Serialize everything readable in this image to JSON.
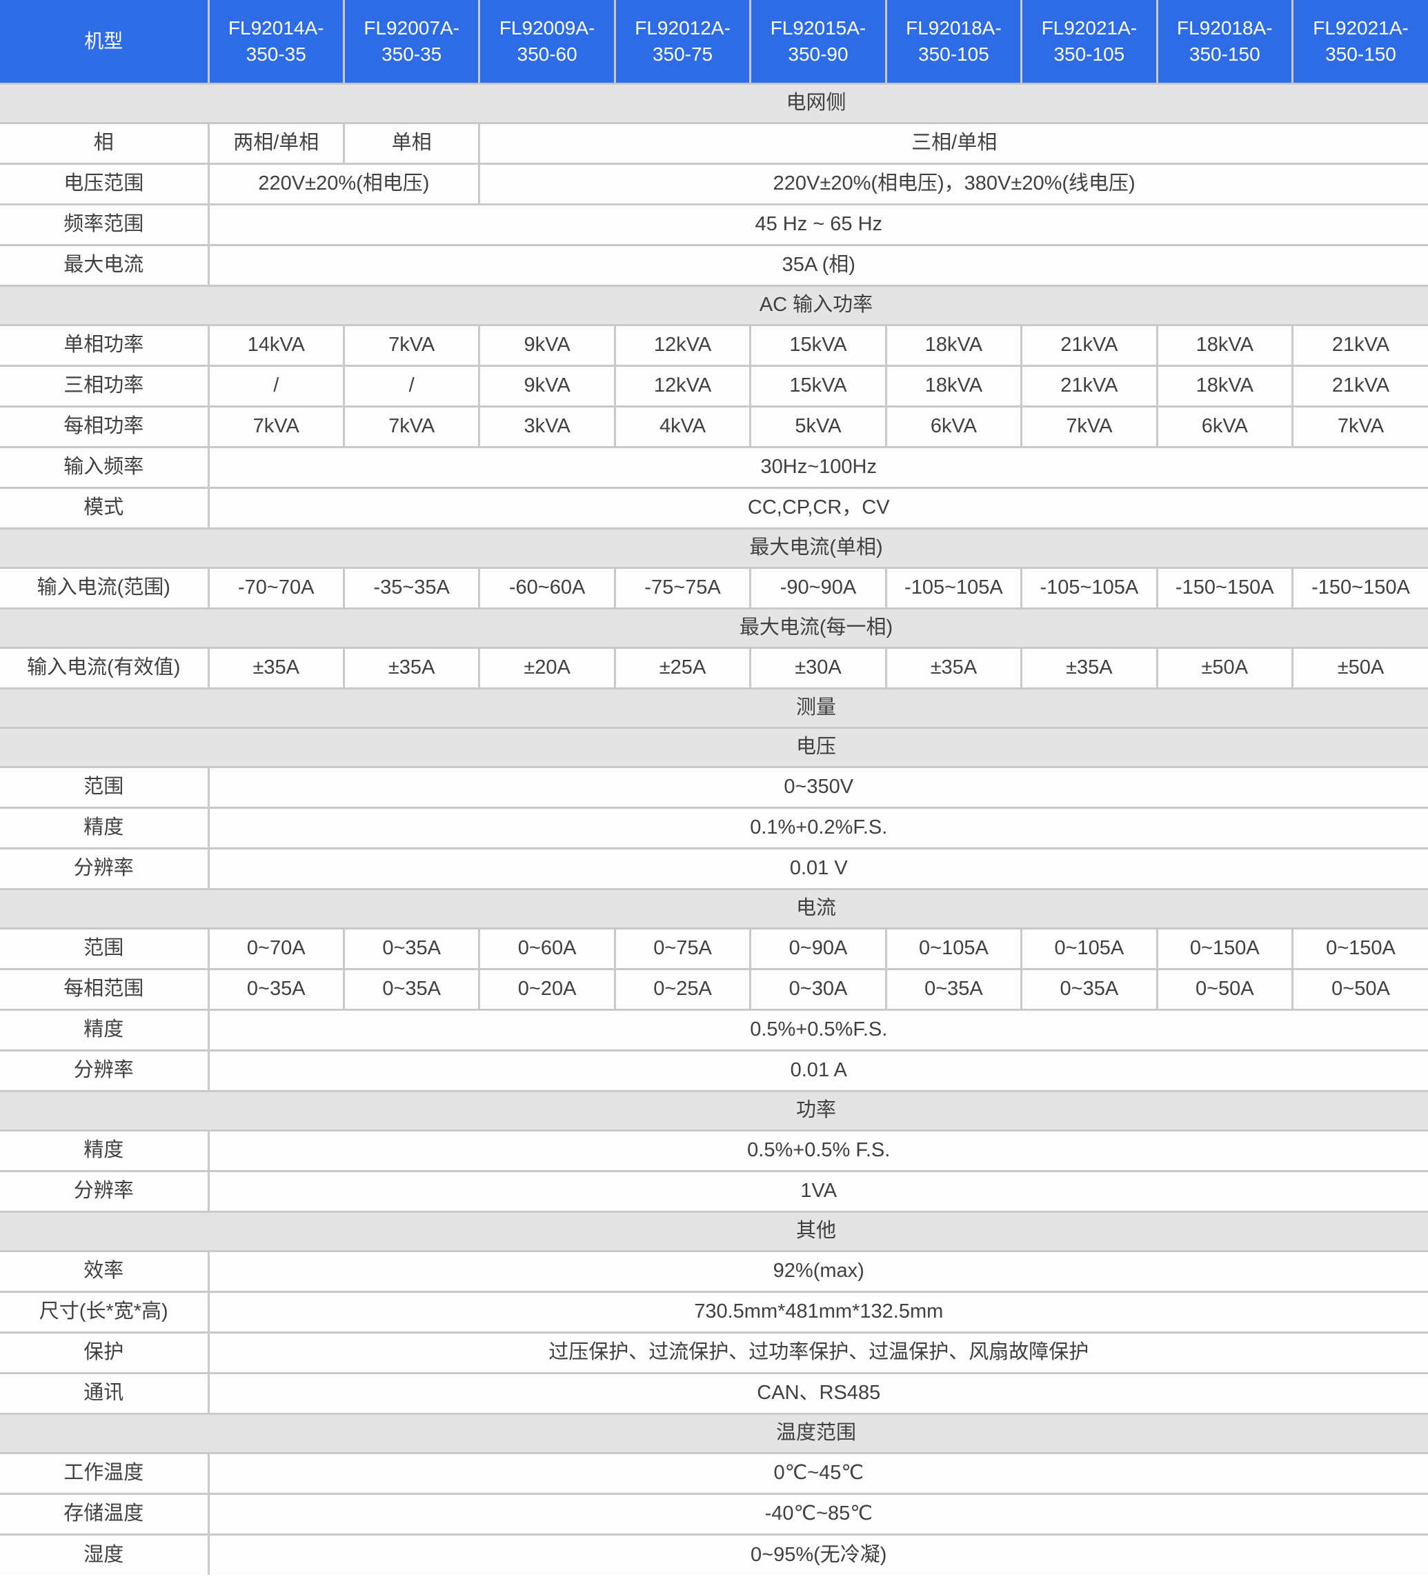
{
  "colors": {
    "header_bg": "#2d6ce5",
    "header_text": "#ffffff",
    "section_bg": "#e4e4e4",
    "row_bg": "#fdfdfd",
    "border": "#c9c9c9",
    "text": "#404040"
  },
  "header": {
    "model_label": "机型",
    "models": [
      "FL92014A-350-35",
      "FL92007A-350-35",
      "FL92009A-350-60",
      "FL92012A-350-75",
      "FL92015A-350-90",
      "FL92018A-350-105",
      "FL92021A-350-105",
      "FL92018A-350-150",
      "FL92021A-350-150"
    ]
  },
  "rows": [
    {
      "type": "section",
      "label": "电网侧"
    },
    {
      "type": "row",
      "label": "相",
      "cells": [
        {
          "text": "两相/单相",
          "span": 1
        },
        {
          "text": "单相",
          "span": 1
        },
        {
          "text": "三相/单相",
          "span": 7
        }
      ]
    },
    {
      "type": "row",
      "label": "电压范围",
      "cells": [
        {
          "text": "220V±20%(相电压)",
          "span": 2
        },
        {
          "text": "220V±20%(相电压)，380V±20%(线电压)",
          "span": 7
        }
      ]
    },
    {
      "type": "row",
      "label": "频率范围",
      "cells": [
        {
          "text": "45 Hz ~ 65 Hz",
          "span": 9
        }
      ]
    },
    {
      "type": "row",
      "label": "最大电流",
      "cells": [
        {
          "text": "35A (相)",
          "span": 9
        }
      ]
    },
    {
      "type": "section",
      "label": "AC 输入功率"
    },
    {
      "type": "row",
      "label": "单相功率",
      "cells": [
        {
          "text": "14kVA",
          "span": 1
        },
        {
          "text": "7kVA",
          "span": 1
        },
        {
          "text": "9kVA",
          "span": 1
        },
        {
          "text": "12kVA",
          "span": 1
        },
        {
          "text": "15kVA",
          "span": 1
        },
        {
          "text": "18kVA",
          "span": 1
        },
        {
          "text": "21kVA",
          "span": 1
        },
        {
          "text": "18kVA",
          "span": 1
        },
        {
          "text": "21kVA",
          "span": 1
        }
      ]
    },
    {
      "type": "row",
      "label": "三相功率",
      "cells": [
        {
          "text": "/",
          "span": 1
        },
        {
          "text": "/",
          "span": 1
        },
        {
          "text": "9kVA",
          "span": 1
        },
        {
          "text": "12kVA",
          "span": 1
        },
        {
          "text": "15kVA",
          "span": 1
        },
        {
          "text": "18kVA",
          "span": 1
        },
        {
          "text": "21kVA",
          "span": 1
        },
        {
          "text": "18kVA",
          "span": 1
        },
        {
          "text": "21kVA",
          "span": 1
        }
      ]
    },
    {
      "type": "row",
      "label": "每相功率",
      "cells": [
        {
          "text": "7kVA",
          "span": 1
        },
        {
          "text": "7kVA",
          "span": 1
        },
        {
          "text": "3kVA",
          "span": 1
        },
        {
          "text": "4kVA",
          "span": 1
        },
        {
          "text": "5kVA",
          "span": 1
        },
        {
          "text": "6kVA",
          "span": 1
        },
        {
          "text": "7kVA",
          "span": 1
        },
        {
          "text": "6kVA",
          "span": 1
        },
        {
          "text": "7kVA",
          "span": 1
        }
      ]
    },
    {
      "type": "row",
      "label": "输入频率",
      "cells": [
        {
          "text": "30Hz~100Hz",
          "span": 9
        }
      ]
    },
    {
      "type": "row",
      "label": "模式",
      "cells": [
        {
          "text": "CC,CP,CR，CV",
          "span": 9
        }
      ]
    },
    {
      "type": "section",
      "label": "最大电流(单相)"
    },
    {
      "type": "row",
      "label": "输入电流(范围)",
      "cells": [
        {
          "text": "-70~70A",
          "span": 1
        },
        {
          "text": "-35~35A",
          "span": 1
        },
        {
          "text": "-60~60A",
          "span": 1
        },
        {
          "text": "-75~75A",
          "span": 1
        },
        {
          "text": "-90~90A",
          "span": 1
        },
        {
          "text": "-105~105A",
          "span": 1
        },
        {
          "text": "-105~105A",
          "span": 1
        },
        {
          "text": "-150~150A",
          "span": 1
        },
        {
          "text": "-150~150A",
          "span": 1
        }
      ]
    },
    {
      "type": "section",
      "label": "最大电流(每一相)"
    },
    {
      "type": "row",
      "label": "输入电流(有效值)",
      "cells": [
        {
          "text": "±35A",
          "span": 1
        },
        {
          "text": "±35A",
          "span": 1
        },
        {
          "text": "±20A",
          "span": 1
        },
        {
          "text": "±25A",
          "span": 1
        },
        {
          "text": "±30A",
          "span": 1
        },
        {
          "text": "±35A",
          "span": 1
        },
        {
          "text": "±35A",
          "span": 1
        },
        {
          "text": "±50A",
          "span": 1
        },
        {
          "text": "±50A",
          "span": 1
        }
      ]
    },
    {
      "type": "section",
      "label": "测量"
    },
    {
      "type": "section",
      "label": "电压"
    },
    {
      "type": "row",
      "label": "范围",
      "cells": [
        {
          "text": "0~350V",
          "span": 9
        }
      ]
    },
    {
      "type": "row",
      "label": "精度",
      "cells": [
        {
          "text": "0.1%+0.2%F.S.",
          "span": 9
        }
      ]
    },
    {
      "type": "row",
      "label": "分辨率",
      "cells": [
        {
          "text": "0.01 V",
          "span": 9
        }
      ]
    },
    {
      "type": "section",
      "label": "电流"
    },
    {
      "type": "row",
      "label": "范围",
      "cells": [
        {
          "text": "0~70A",
          "span": 1
        },
        {
          "text": "0~35A",
          "span": 1
        },
        {
          "text": "0~60A",
          "span": 1
        },
        {
          "text": "0~75A",
          "span": 1
        },
        {
          "text": "0~90A",
          "span": 1
        },
        {
          "text": "0~105A",
          "span": 1
        },
        {
          "text": "0~105A",
          "span": 1
        },
        {
          "text": "0~150A",
          "span": 1
        },
        {
          "text": "0~150A",
          "span": 1
        }
      ]
    },
    {
      "type": "row",
      "label": "每相范围",
      "cells": [
        {
          "text": "0~35A",
          "span": 1
        },
        {
          "text": "0~35A",
          "span": 1
        },
        {
          "text": "0~20A",
          "span": 1
        },
        {
          "text": "0~25A",
          "span": 1
        },
        {
          "text": "0~30A",
          "span": 1
        },
        {
          "text": "0~35A",
          "span": 1
        },
        {
          "text": "0~35A",
          "span": 1
        },
        {
          "text": "0~50A",
          "span": 1
        },
        {
          "text": "0~50A",
          "span": 1
        }
      ]
    },
    {
      "type": "row",
      "label": "精度",
      "cells": [
        {
          "text": "0.5%+0.5%F.S.",
          "span": 9
        }
      ]
    },
    {
      "type": "row",
      "label": "分辨率",
      "cells": [
        {
          "text": "0.01 A",
          "span": 9
        }
      ]
    },
    {
      "type": "section",
      "label": "功率"
    },
    {
      "type": "row",
      "label": "精度",
      "cells": [
        {
          "text": "0.5%+0.5% F.S.",
          "span": 9
        }
      ]
    },
    {
      "type": "row",
      "label": "分辨率",
      "cells": [
        {
          "text": "1VA",
          "span": 9
        }
      ]
    },
    {
      "type": "section",
      "label": "其他"
    },
    {
      "type": "row",
      "label": "效率",
      "cells": [
        {
          "text": "92%(max)",
          "span": 9
        }
      ]
    },
    {
      "type": "row",
      "label": "尺寸(长*宽*高)",
      "cells": [
        {
          "text": "730.5mm*481mm*132.5mm",
          "span": 9
        }
      ]
    },
    {
      "type": "row",
      "label": "保护",
      "cells": [
        {
          "text": "过压保护、过流保护、过功率保护、过温保护、风扇故障保护",
          "span": 9
        }
      ]
    },
    {
      "type": "row",
      "label": "通讯",
      "cells": [
        {
          "text": "CAN、RS485",
          "span": 9
        }
      ]
    },
    {
      "type": "section",
      "label": "温度范围"
    },
    {
      "type": "row",
      "label": "工作温度",
      "cells": [
        {
          "text": "0℃~45℃",
          "span": 9
        }
      ]
    },
    {
      "type": "row",
      "label": "存储温度",
      "cells": [
        {
          "text": "-40℃~85℃",
          "span": 9
        }
      ]
    },
    {
      "type": "row",
      "label": "湿度",
      "cells": [
        {
          "text": "0~95%(无冷凝)",
          "span": 9
        }
      ]
    }
  ]
}
